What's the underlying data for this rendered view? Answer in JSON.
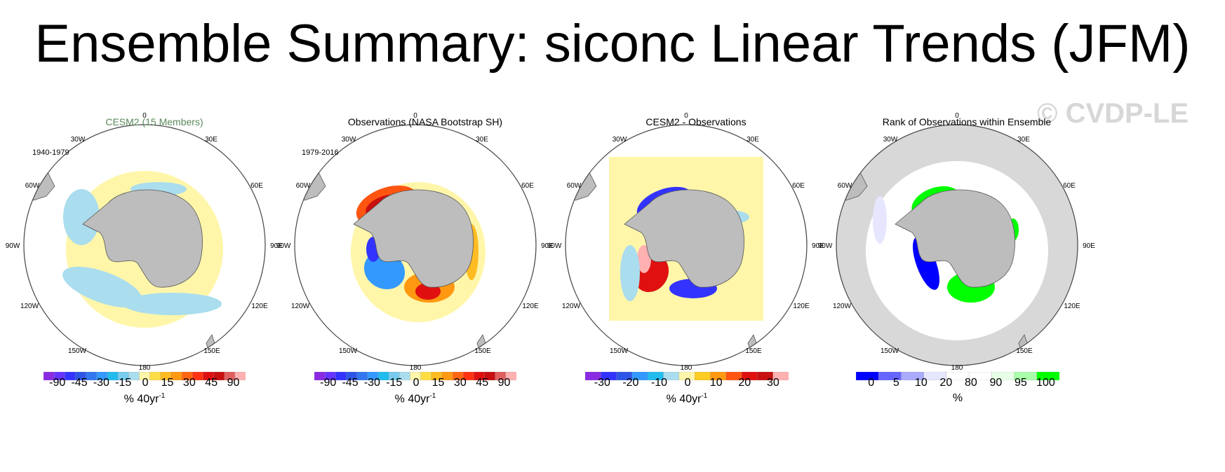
{
  "header": {
    "title": "Ensemble Summary: siconc Linear Trends (JFM)"
  },
  "watermark": "© CVDP-LE",
  "panels": [
    {
      "title": "CESM2 (15 Members)",
      "title_color": "#5a8a5a",
      "period": "1940-1979"
    },
    {
      "title": "Observations (NASA Bootstrap SH)",
      "title_color": "#000000",
      "period": "1979-2016"
    },
    {
      "title": "CESM2 - Observations",
      "title_color": "#000000",
      "period": ""
    },
    {
      "title": "Rank of Observations within Ensemble",
      "title_color": "#000000",
      "period": ""
    }
  ],
  "map_labels": {
    "lon_0": "0",
    "lon_30w": "30W",
    "lon_30e": "30E",
    "lon_60w": "60W",
    "lon_60e": "60E",
    "lon_90w": "90W",
    "lon_90e": "90E",
    "lon_120w": "120W",
    "lon_120e": "120E",
    "lon_150w": "150W",
    "lon_150e": "150E",
    "lon_180": "180"
  },
  "colorbars": [
    {
      "colors": [
        "#8a2be2",
        "#6633ff",
        "#3333ff",
        "#2d55e6",
        "#3377ee",
        "#3399ff",
        "#22bbee",
        "#77ccee",
        "#aaddee",
        "#fff6aa",
        "#ffdd44",
        "#ffbb22",
        "#ff9911",
        "#ff6611",
        "#ff3311",
        "#e01010",
        "#c81010",
        "#e06060",
        "#ffb0b0"
      ],
      "ticks": [
        "-90",
        "-45",
        "-30",
        "-15",
        "0",
        "15",
        "30",
        "45",
        "90"
      ],
      "units": "% 40yr",
      "units_sup": "-1"
    },
    {
      "colors": [
        "#8a2be2",
        "#6633ff",
        "#3333ff",
        "#2d55e6",
        "#3377ee",
        "#3399ff",
        "#22bbee",
        "#77ccee",
        "#aaddee",
        "#fff6aa",
        "#ffdd44",
        "#ffbb22",
        "#ff9911",
        "#ff6611",
        "#ff3311",
        "#e01010",
        "#c81010",
        "#e06060",
        "#ffb0b0"
      ],
      "ticks": [
        "-90",
        "-45",
        "-30",
        "-15",
        "0",
        "15",
        "30",
        "45",
        "90"
      ],
      "units": "% 40yr",
      "units_sup": "-1"
    },
    {
      "colors": [
        "#8a2be2",
        "#3333ff",
        "#2d55e6",
        "#3399ff",
        "#22bbee",
        "#aaddee",
        "#fff6aa",
        "#ffcc22",
        "#ff9911",
        "#ff5511",
        "#e01010",
        "#c81010",
        "#ffb0b0"
      ],
      "ticks": [
        "-30",
        "-20",
        "-10",
        "0",
        "10",
        "20",
        "30"
      ],
      "units": "% 40yr",
      "units_sup": "-1"
    },
    {
      "colors": [
        "#0000ff",
        "#6666ff",
        "#aaaaff",
        "#e6e6ff",
        "#ffffff",
        "#ffffff",
        "#e6ffe6",
        "#aaffaa",
        "#00ff00"
      ],
      "ticks": [
        "0",
        "5",
        "10",
        "20",
        "80",
        "90",
        "95",
        "100"
      ],
      "units": "%",
      "units_sup": ""
    }
  ]
}
